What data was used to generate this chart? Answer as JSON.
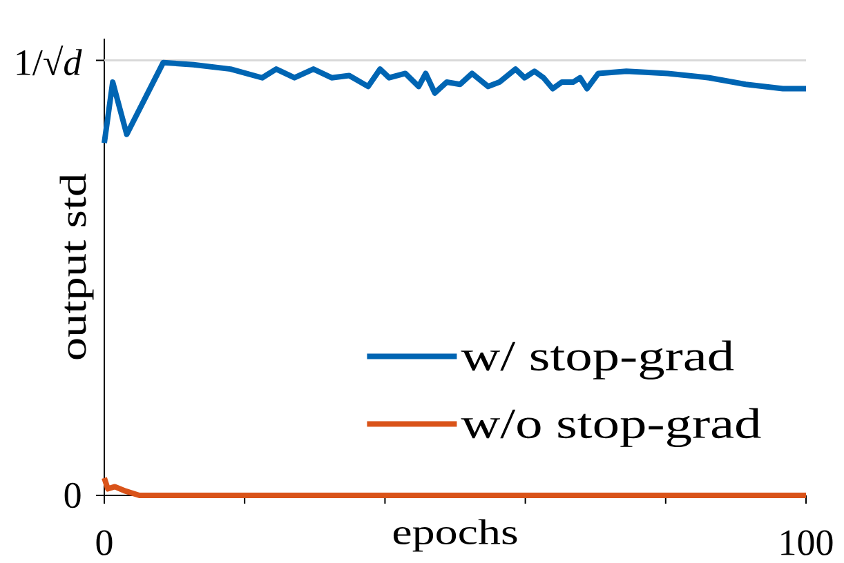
{
  "chart_data": {
    "type": "line",
    "xlabel": "epochs",
    "ylabel": "output std",
    "series": [
      {
        "name": "w/ stop-grad",
        "color": "#0065b3",
        "x": [
          0,
          1.2,
          3.2,
          8.4,
          12.7,
          18,
          22.5,
          24.5,
          27.1,
          29.8,
          32.4,
          34.9,
          37.6,
          39.3,
          40.6,
          42.9,
          44.8,
          45.8,
          47.1,
          48.8,
          50.7,
          52.4,
          54.7,
          56.3,
          58.6,
          59.9,
          61.3,
          62.6,
          63.9,
          65.2,
          66.8,
          67.8,
          68.8,
          70.4,
          74.4,
          80.3,
          86.2,
          91.4,
          96.7,
          100
        ],
        "values": [
          0.81,
          0.95,
          0.83,
          0.995,
          0.99,
          0.98,
          0.96,
          0.98,
          0.96,
          0.98,
          0.96,
          0.965,
          0.94,
          0.98,
          0.96,
          0.97,
          0.94,
          0.97,
          0.925,
          0.95,
          0.945,
          0.97,
          0.94,
          0.95,
          0.98,
          0.96,
          0.975,
          0.96,
          0.935,
          0.95,
          0.95,
          0.96,
          0.935,
          0.97,
          0.975,
          0.97,
          0.96,
          0.945,
          0.935,
          0.935
        ]
      },
      {
        "name": "w/o stop-grad",
        "color": "#d95319",
        "x": [
          0,
          0.5,
          1.5,
          3,
          5,
          100
        ],
        "values": [
          0.04,
          0.015,
          0.02,
          0.01,
          0,
          0
        ]
      }
    ],
    "xlim": [
      0,
      100
    ],
    "xticks": [
      0,
      {
        "value": 20,
        "label": null
      },
      {
        "value": 40,
        "label": null
      },
      {
        "value": 60,
        "label": null
      },
      {
        "value": 80,
        "label": null
      },
      100
    ],
    "ylim": [
      0,
      1.05
    ],
    "yticks": [
      0,
      {
        "value": 1,
        "label": "1/√*d*"
      }
    ],
    "ref_lines": [
      {
        "axis": "y",
        "value": 1,
        "color": "#d9d9d9"
      }
    ],
    "legend": "bottom right"
  }
}
